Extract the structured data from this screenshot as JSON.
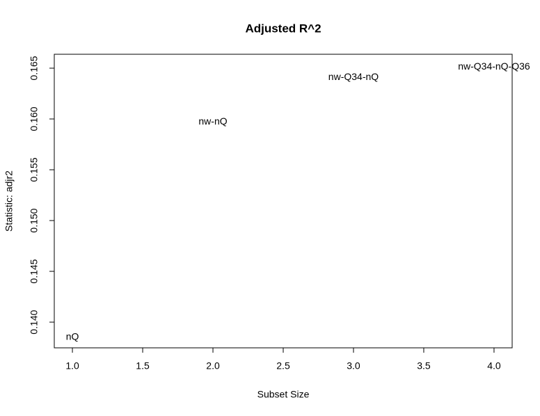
{
  "chart_data": {
    "type": "scatter",
    "title": "Adjusted R^2",
    "x_label": "Subset Size",
    "y_label": "Statistic: adjr2",
    "x": [
      1,
      2,
      3,
      4
    ],
    "values": [
      0.1385,
      0.1597,
      0.1641,
      0.1651
    ],
    "labels": [
      "nQ",
      "nw-nQ",
      "nw-Q34-nQ",
      "nw-Q34-nQ-Q36"
    ],
    "color": "#000000",
    "xlim": [
      0.871,
      4.129
    ],
    "xticks": [
      {
        "value": 1,
        "label": "1.0"
      },
      {
        "value": 1.5,
        "label": "1.5"
      },
      {
        "value": 2,
        "label": "2.0"
      },
      {
        "value": 2.5,
        "label": "2.5"
      },
      {
        "value": 3,
        "label": "3.0"
      },
      {
        "value": 3.5,
        "label": "3.5"
      },
      {
        "value": 4,
        "label": "4.0"
      }
    ],
    "ylim": [
      0.13747,
      0.16637
    ],
    "yticks": [
      {
        "value": 0.14,
        "label": "0.140"
      },
      0.145,
      {
        "value": 0.15,
        "label": "0.150"
      },
      0.155,
      {
        "value": 0.16,
        "label": "0.160"
      },
      0.165
    ]
  }
}
